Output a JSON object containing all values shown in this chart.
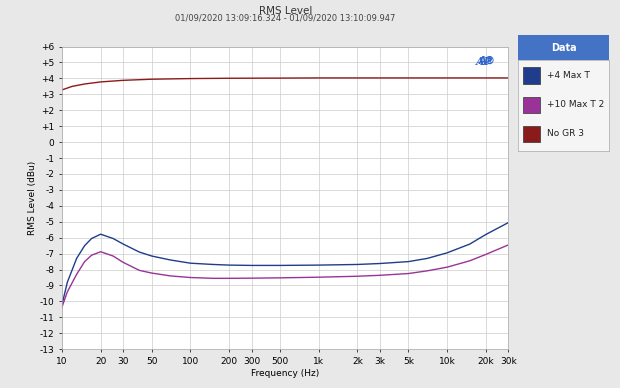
{
  "title": "RMS Level",
  "timestamp": "01/09/2020 13:09:16.324 - 01/09/2020 13:10:09.947",
  "ylabel": "RMS Level (dBu)",
  "xlabel": "Frequency (Hz)",
  "ylim": [
    -13,
    6
  ],
  "yticks": [
    6,
    5,
    4,
    3,
    2,
    1,
    0,
    -1,
    -2,
    -3,
    -4,
    -5,
    -6,
    -7,
    -8,
    -9,
    -10,
    -11,
    -12,
    -13
  ],
  "xtick_positions": [
    10,
    20,
    30,
    50,
    100,
    200,
    300,
    500,
    1000,
    2000,
    3000,
    5000,
    10000,
    20000,
    30000
  ],
  "xtick_labels": [
    "10",
    "20",
    "30",
    "50",
    "100",
    "200",
    "300",
    "500",
    "1k",
    "2k",
    "3k",
    "5k",
    "10k",
    "20k",
    "30k"
  ],
  "fig_bg_color": "#e8e8e8",
  "plot_bg_color": "#ffffff",
  "grid_color": "#cccccc",
  "legend_title": "Data",
  "legend_title_bg": "#4472c4",
  "legend_title_color": "#ffffff",
  "ap_logo_color": "#3366cc",
  "legend_entries": [
    {
      "label": "+4 Max T",
      "color": "#1f3d8a",
      "lw": 1.0
    },
    {
      "label": "+10 Max T 2",
      "color": "#993399",
      "lw": 1.0
    },
    {
      "label": "No GR 3",
      "color": "#8b1a1a",
      "lw": 1.0
    }
  ],
  "trace_no_gr": {
    "freqs": [
      10,
      12,
      15,
      20,
      30,
      50,
      100,
      200,
      500,
      1000,
      2000,
      5000,
      10000,
      20000,
      30000
    ],
    "values": [
      3.28,
      3.5,
      3.65,
      3.78,
      3.88,
      3.95,
      3.99,
      4.01,
      4.02,
      4.03,
      4.03,
      4.03,
      4.03,
      4.03,
      4.03
    ]
  },
  "trace_4max": {
    "freqs": [
      10,
      11,
      13,
      15,
      17,
      20,
      25,
      30,
      40,
      50,
      70,
      100,
      150,
      200,
      300,
      500,
      1000,
      2000,
      3000,
      5000,
      7000,
      10000,
      15000,
      20000,
      30000
    ],
    "values": [
      -10.2,
      -8.8,
      -7.3,
      -6.5,
      -6.05,
      -5.78,
      -6.05,
      -6.4,
      -6.9,
      -7.15,
      -7.4,
      -7.6,
      -7.68,
      -7.72,
      -7.74,
      -7.74,
      -7.72,
      -7.68,
      -7.62,
      -7.5,
      -7.3,
      -6.95,
      -6.4,
      -5.8,
      -5.05
    ]
  },
  "trace_10max": {
    "freqs": [
      10,
      11,
      13,
      15,
      17,
      20,
      25,
      30,
      40,
      50,
      70,
      100,
      150,
      200,
      300,
      500,
      1000,
      2000,
      3000,
      5000,
      7000,
      10000,
      15000,
      20000,
      30000
    ],
    "values": [
      -10.35,
      -9.4,
      -8.3,
      -7.5,
      -7.1,
      -6.88,
      -7.15,
      -7.55,
      -8.05,
      -8.22,
      -8.4,
      -8.5,
      -8.55,
      -8.55,
      -8.54,
      -8.52,
      -8.48,
      -8.42,
      -8.36,
      -8.25,
      -8.08,
      -7.85,
      -7.45,
      -7.05,
      -6.45
    ]
  }
}
